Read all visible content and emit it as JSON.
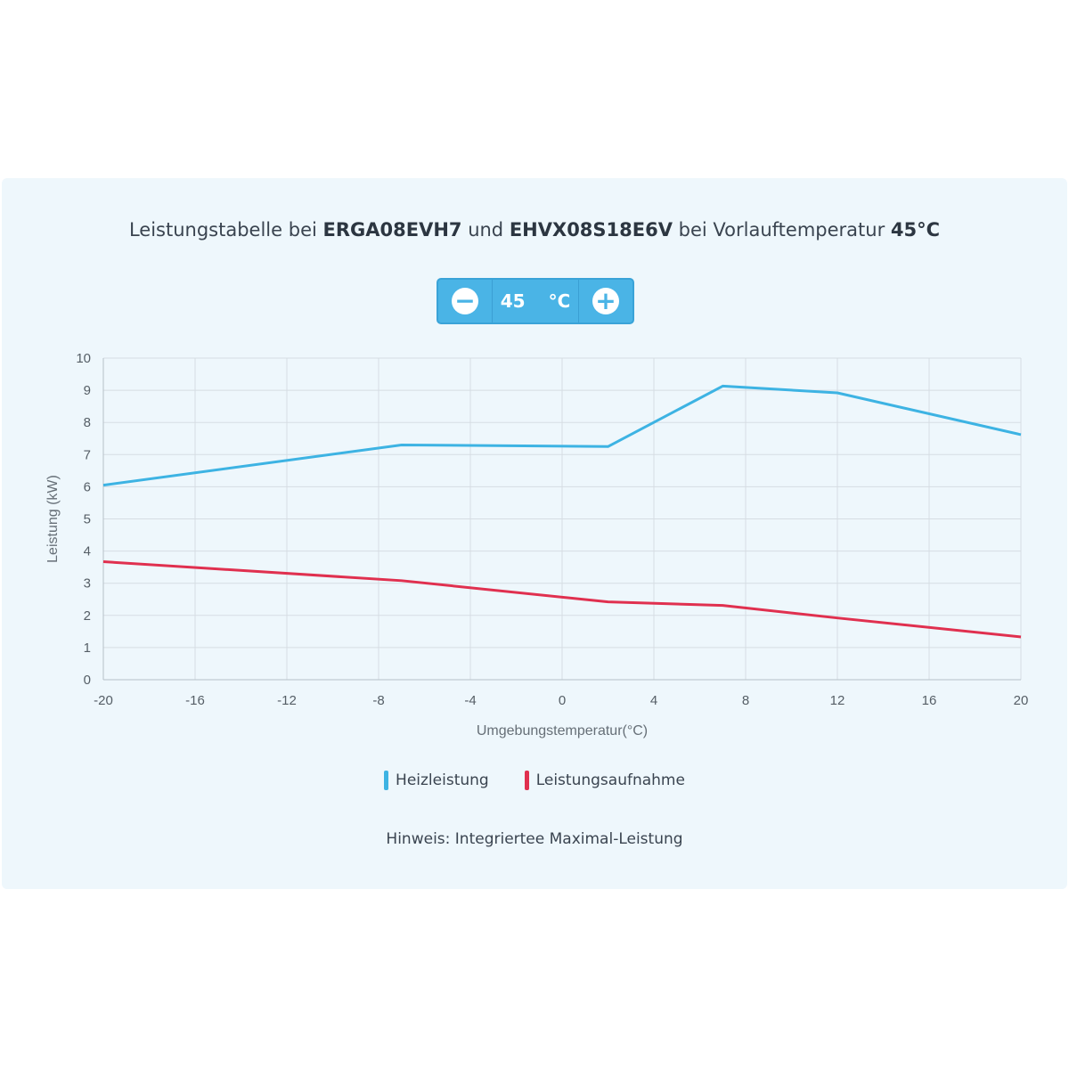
{
  "header": {
    "title_part1": "Leistungstabelle bei ",
    "model1": "ERGA08EVH7",
    "title_part2": " und ",
    "model2": "EHVX08S18E6V",
    "title_part3": " bei Vorlauftemperatur ",
    "temp_label": "45°C"
  },
  "stepper": {
    "minus_icon": "minus-circle-icon",
    "plus_icon": "plus-circle-icon",
    "value": "45",
    "unit": "°C"
  },
  "note": "Hinweis: Integriertee Maximal-Leistung",
  "chart_data": {
    "type": "line",
    "xlabel": "Umgebungstemperatur(°C)",
    "ylabel": "Leistung (kW)",
    "xlim": [
      -20,
      20
    ],
    "ylim": [
      0,
      10
    ],
    "xticks": [
      -20,
      -16,
      -12,
      -8,
      -4,
      0,
      4,
      8,
      12,
      16,
      20
    ],
    "yticks": [
      0,
      1,
      2,
      3,
      4,
      5,
      6,
      7,
      8,
      9,
      10
    ],
    "grid": true,
    "legend_position": "bottom",
    "series": [
      {
        "name": "Heizleistung",
        "color": "#3db3e3",
        "x": [
          -20,
          -7,
          2,
          7,
          12,
          20
        ],
        "y": [
          6.05,
          7.3,
          7.25,
          9.13,
          8.92,
          7.62
        ]
      },
      {
        "name": "Leistungsaufnahme",
        "color": "#e0304f",
        "x": [
          -20,
          -7,
          2,
          7,
          12,
          20
        ],
        "y": [
          3.67,
          3.08,
          2.42,
          2.31,
          1.92,
          1.33
        ]
      }
    ]
  }
}
